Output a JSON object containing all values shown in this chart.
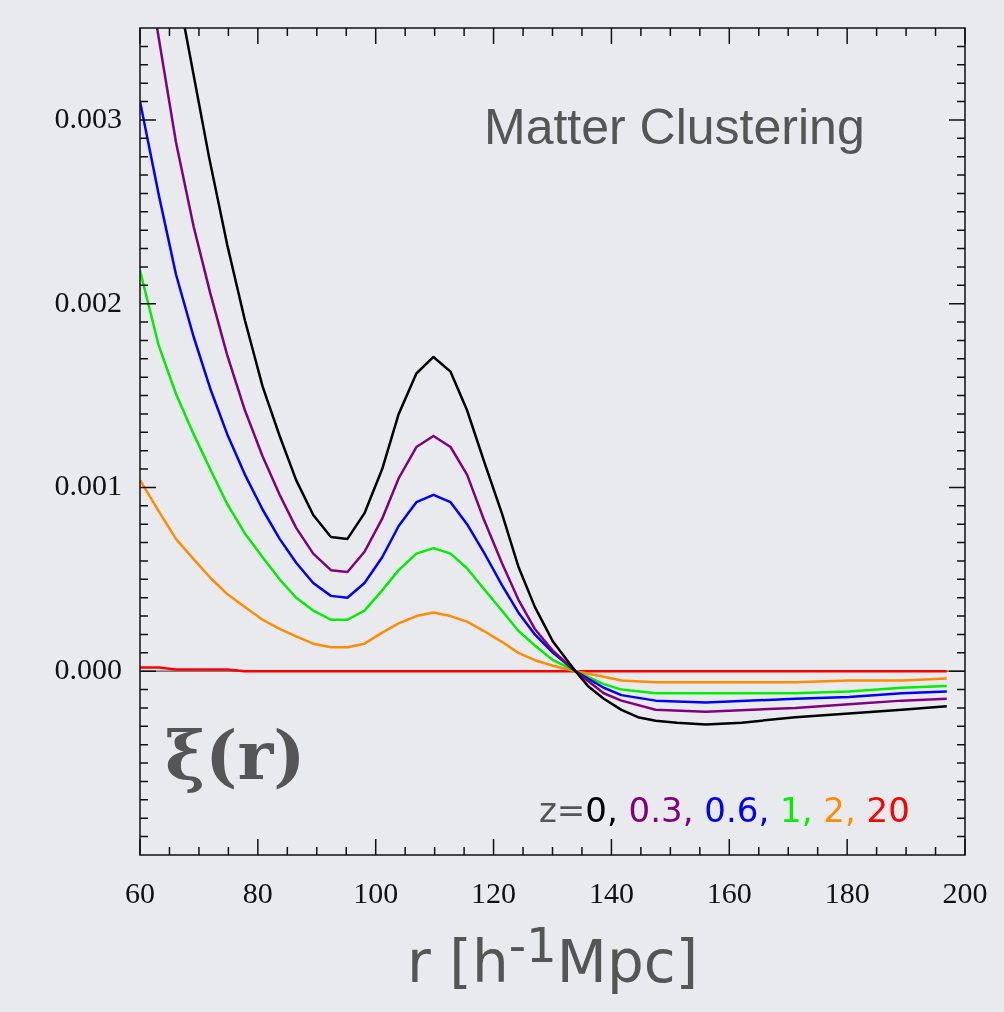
{
  "chart_data": {
    "type": "line",
    "title": "Matter Clustering",
    "xlabel": "r  [h$^{-1}$Mpc]",
    "ylabel": "ξ(r)",
    "legend_title": "z=",
    "legend": "bottom right",
    "marker": "none",
    "line_style": "solid",
    "xlim": [
      60,
      200
    ],
    "xticks": [
      60,
      {
        "value": 65,
        "label": null
      },
      {
        "value": 70,
        "label": null
      },
      {
        "value": 75,
        "label": null
      },
      80,
      {
        "value": 85,
        "label": null
      },
      {
        "value": 90,
        "label": null
      },
      {
        "value": 95,
        "label": null
      },
      100,
      {
        "value": 105,
        "label": null
      },
      {
        "value": 110,
        "label": null
      },
      {
        "value": 115,
        "label": null
      },
      120,
      {
        "value": 125,
        "label": null
      },
      {
        "value": 130,
        "label": null
      },
      {
        "value": 135,
        "label": null
      },
      140,
      {
        "value": 145,
        "label": null
      },
      {
        "value": 150,
        "label": null
      },
      {
        "value": 155,
        "label": null
      },
      160,
      {
        "value": 165,
        "label": null
      },
      {
        "value": 170,
        "label": null
      },
      {
        "value": 175,
        "label": null
      },
      180,
      {
        "value": 185,
        "label": null
      },
      {
        "value": 190,
        "label": null
      },
      {
        "value": 195,
        "label": null
      },
      200
    ],
    "ylim": [
      -0.001,
      0.0035
    ],
    "yticks": [
      {
        "value": -0.0009,
        "label": null
      },
      {
        "value": -0.0008,
        "label": null
      },
      {
        "value": -0.0007,
        "label": null
      },
      {
        "value": -0.0006,
        "label": null
      },
      {
        "value": -0.0005,
        "label": null
      },
      {
        "value": -0.0004,
        "label": null
      },
      {
        "value": -0.0003,
        "label": null
      },
      {
        "value": -0.0002,
        "label": null
      },
      {
        "value": -0.0001,
        "label": null
      },
      {
        "value": 0,
        "label": "0.000"
      },
      {
        "value": 0.0001,
        "label": null
      },
      {
        "value": 0.0002,
        "label": null
      },
      {
        "value": 0.0003,
        "label": null
      },
      {
        "value": 0.0004,
        "label": null
      },
      {
        "value": 0.0005,
        "label": null
      },
      {
        "value": 0.0006,
        "label": null
      },
      {
        "value": 0.0007,
        "label": null
      },
      {
        "value": 0.0008,
        "label": null
      },
      {
        "value": 0.0009,
        "label": null
      },
      {
        "value": 0.001,
        "label": "0.001"
      },
      {
        "value": 0.0011,
        "label": null
      },
      {
        "value": 0.0012,
        "label": null
      },
      {
        "value": 0.0013,
        "label": null
      },
      {
        "value": 0.0014,
        "label": null
      },
      {
        "value": 0.0015,
        "label": null
      },
      {
        "value": 0.0016,
        "label": null
      },
      {
        "value": 0.0017,
        "label": null
      },
      {
        "value": 0.0018,
        "label": null
      },
      {
        "value": 0.0019,
        "label": null
      },
      {
        "value": 0.002,
        "label": "0.002"
      },
      {
        "value": 0.0021,
        "label": null
      },
      {
        "value": 0.0022,
        "label": null
      },
      {
        "value": 0.0023,
        "label": null
      },
      {
        "value": 0.0024,
        "label": null
      },
      {
        "value": 0.0025,
        "label": null
      },
      {
        "value": 0.0026,
        "label": null
      },
      {
        "value": 0.0027,
        "label": null
      },
      {
        "value": 0.0028,
        "label": null
      },
      {
        "value": 0.0029,
        "label": null
      },
      {
        "value": 0.003,
        "label": "0.003"
      },
      {
        "value": 0.0031,
        "label": null
      },
      {
        "value": 0.0032,
        "label": null
      },
      {
        "value": 0.0033,
        "label": null
      },
      {
        "value": 0.0034,
        "label": null
      }
    ],
    "ref_lines": [
      {
        "axis": "y",
        "value": 0,
        "color": "#555555"
      }
    ],
    "x": [
      60,
      63.2,
      66.1,
      69.1,
      71.9,
      74.8,
      77.8,
      80.8,
      83.7,
      86.5,
      89.4,
      92.4,
      95.2,
      98.1,
      101.1,
      103.9,
      106.9,
      109.8,
      112.7,
      115.5,
      118.3,
      121.4,
      124.2,
      127.0,
      130.1,
      133.9,
      138.7,
      141.7,
      147.5,
      156.0,
      171.2,
      180.3,
      189.3,
      196.9
    ],
    "series": [
      {
        "name": "0,",
        "color": "#000000",
        "x": [
          67.6,
          71.7,
          74.8,
          77.8,
          80.8,
          83.7,
          86.5,
          89.4,
          92.4,
          95.2,
          98.1,
          101.1,
          103.9,
          106.9,
          109.8,
          112.7,
          115.5,
          118.3,
          121.4,
          124.2,
          127.0,
          130.1,
          133.9,
          136.0,
          138.7,
          141.7,
          144.5,
          147.5,
          151.1,
          156.0,
          162.1,
          171.2,
          180.3,
          189.3,
          196.9
        ],
        "values": [
          0.0035,
          0.0028,
          0.00232,
          0.00191,
          0.00155,
          0.00128,
          0.00104,
          0.00085,
          0.00073,
          0.00072,
          0.00086,
          0.0011,
          0.0014,
          0.00162,
          0.00171,
          0.00163,
          0.00142,
          0.00115,
          0.00086,
          0.00057,
          0.00035,
          0.00016,
          0,
          -8e-05,
          -0.00015,
          -0.00021,
          -0.00025,
          -0.00027,
          -0.00028,
          -0.00029,
          -0.00028,
          -0.00025,
          -0.00023,
          -0.00021,
          -0.00019
        ]
      },
      {
        "name": "0.3,",
        "color": "#800080",
        "x": [
          62.9,
          66.1,
          69.1,
          71.9,
          74.8,
          77.8,
          80.8,
          83.7,
          86.5,
          89.4,
          92.4,
          95.2,
          98.1,
          101.1,
          103.9,
          106.9,
          109.8,
          112.7,
          115.5,
          118.3,
          121.4,
          124.2,
          127.0,
          130.1,
          133.9,
          138.7,
          141.7,
          147.5,
          156.0,
          171.2,
          180.3,
          189.3,
          196.9
        ],
        "values": [
          0.0035,
          0.00288,
          0.00242,
          0.00206,
          0.00172,
          0.00142,
          0.00117,
          0.00096,
          0.00078,
          0.00064,
          0.00055,
          0.00054,
          0.00065,
          0.00083,
          0.00105,
          0.00122,
          0.00128,
          0.00122,
          0.00107,
          0.00083,
          0.00059,
          0.00039,
          0.00023,
          0.00011,
          0,
          -0.00012,
          -0.00016,
          -0.00021,
          -0.00022,
          -0.0002,
          -0.00018,
          -0.00016,
          -0.00015
        ]
      },
      {
        "name": "0.6,",
        "color": "#0000ff",
        "values": [
          0.0031,
          0.00259,
          0.00216,
          0.00182,
          0.00154,
          0.00129,
          0.00107,
          0.00088,
          0.00072,
          0.00059,
          0.00048,
          0.00041,
          0.0004,
          0.00048,
          0.00062,
          0.00079,
          0.00092,
          0.00096,
          0.00092,
          0.0008,
          0.00065,
          0.00047,
          0.00032,
          0.0002,
          0.0001,
          0,
          -9e-05,
          -0.00013,
          -0.00016,
          -0.00017,
          -0.00015,
          -0.00014,
          -0.00012,
          -0.00011
        ]
      },
      {
        "name": "1,",
        "color": "#00ee00",
        "values": [
          0.00218,
          0.00177,
          0.00151,
          0.00129,
          0.0011,
          0.00091,
          0.00075,
          0.00062,
          0.0005,
          0.0004,
          0.00033,
          0.00028,
          0.00028,
          0.00033,
          0.00044,
          0.00055,
          0.00064,
          0.00067,
          0.00064,
          0.00056,
          0.00045,
          0.00033,
          0.00022,
          0.00014,
          6e-05,
          0,
          -7e-05,
          -0.0001,
          -0.00012,
          -0.00012,
          -0.00012,
          -0.00011,
          -9e-05,
          -8e-05
        ]
      },
      {
        "name": "2,",
        "color": "#ff8c00",
        "values": [
          0.00104,
          0.00087,
          0.00072,
          0.00061,
          0.00051,
          0.00042,
          0.00035,
          0.00028,
          0.00023,
          0.00019,
          0.00015,
          0.00013,
          0.00013,
          0.00015,
          0.00021,
          0.00026,
          0.0003,
          0.00032,
          0.0003,
          0.00027,
          0.00022,
          0.00016,
          0.0001,
          6e-05,
          3e-05,
          0,
          -3e-05,
          -5e-05,
          -6e-05,
          -6e-05,
          -6e-05,
          -5e-05,
          -5e-05,
          -4e-05
        ]
      },
      {
        "name": "20",
        "color": "#ff0000",
        "values": [
          2e-05,
          2e-05,
          1e-05,
          1e-05,
          1e-05,
          1e-05,
          0,
          0,
          0,
          0,
          0,
          0,
          0,
          0,
          0,
          0,
          0,
          0,
          0,
          0,
          0,
          0,
          0,
          0,
          0,
          0,
          0,
          0,
          0,
          0,
          0,
          0,
          0,
          0
        ]
      }
    ]
  }
}
